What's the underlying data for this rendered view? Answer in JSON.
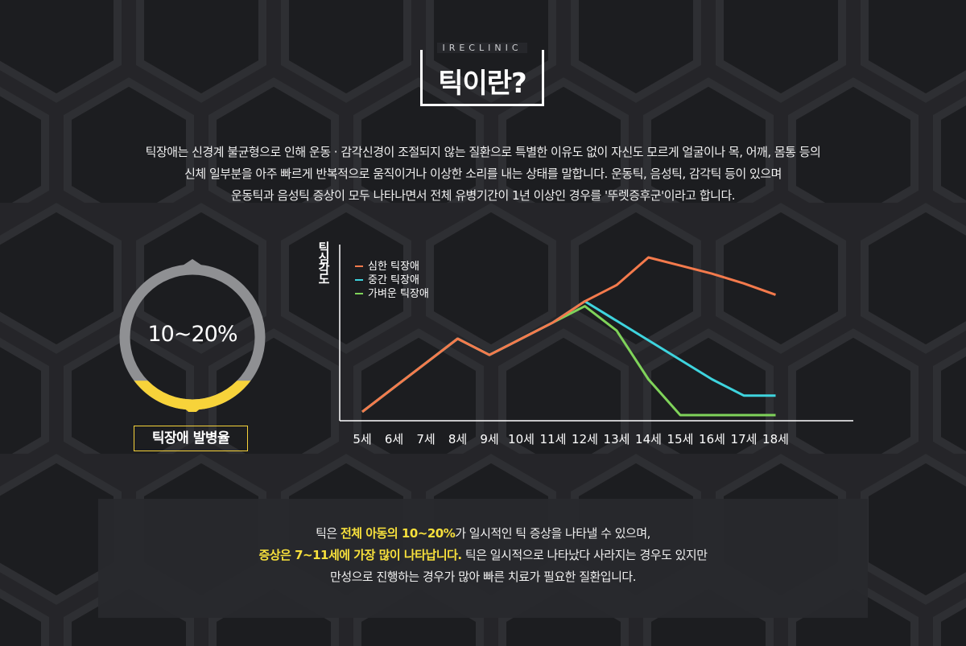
{
  "header": {
    "brand": "IRECLINIC",
    "title": "틱이란?"
  },
  "intro": {
    "lines": [
      "틱장애는 신경계 불균형으로 인해 운동 · 감각신경이 조절되지 않는 질환으로 특별한 이유도 없이 자신도 모르게 얼굴이나 목, 어깨, 몸통 등의",
      "신체 일부분을 아주 빠르게 반복적으로 움직이거나 이상한 소리를 내는 상태를 말합니다. 운동틱, 음성틱, 감각틱 등이 있으며",
      "운동틱과 음성틱 증상이 모두 나타나면서 전체 유병기간이 1년 이상인 경우를 '뚜렛증후군'이라고 합니다."
    ]
  },
  "prevalence": {
    "value_label": "10~20%",
    "fill_fraction": 0.2,
    "label": "틱장애 발병율",
    "ring_color": "#8f9093",
    "fill_color": "#f7d33a"
  },
  "chart_data": {
    "type": "line",
    "ylabel": "틱심각도",
    "xlabel": "",
    "categories": [
      "5세",
      "6세",
      "7세",
      "8세",
      "9세",
      "10세",
      "11세",
      "12세",
      "13세",
      "14세",
      "15세",
      "16세",
      "17세",
      "18세"
    ],
    "ylim": [
      0,
      10
    ],
    "grid": false,
    "legend_position": "top-left",
    "series": [
      {
        "name": "심한 틱장애",
        "color": "#f47a4c",
        "values": [
          0.5,
          2,
          3.5,
          5,
          4,
          5,
          6,
          7.3,
          8.3,
          10,
          9.5,
          9,
          8.4,
          7.7
        ]
      },
      {
        "name": "중간 틱장애",
        "color": "#3ed4de",
        "values": [
          0.5,
          2,
          3.5,
          5,
          4,
          5,
          6,
          7.3,
          6.1,
          4.9,
          3.7,
          2.5,
          1.5,
          1.5
        ]
      },
      {
        "name": "가벼운 틱장애",
        "color": "#7fd35a",
        "values": [
          0.5,
          2,
          3.5,
          5,
          4,
          5,
          6,
          7,
          5.5,
          2.5,
          0.3,
          0.3,
          0.3,
          0.3
        ]
      }
    ]
  },
  "summary": {
    "line1_pre": "틱은 ",
    "line1_hl": "전체 아동의 10~20%",
    "line1_post": "가 일시적인 틱 증상을 나타낼 수 있으며,",
    "line2_hl": "증상은 7~11세에 가장 많이 나타납니다.",
    "line2_post": " 틱은 일시적으로 나타났다 사라지는 경우도 있지만",
    "line3": "만성으로 진행하는 경우가 많아 빠른 치료가 필요한 질환입니다."
  }
}
